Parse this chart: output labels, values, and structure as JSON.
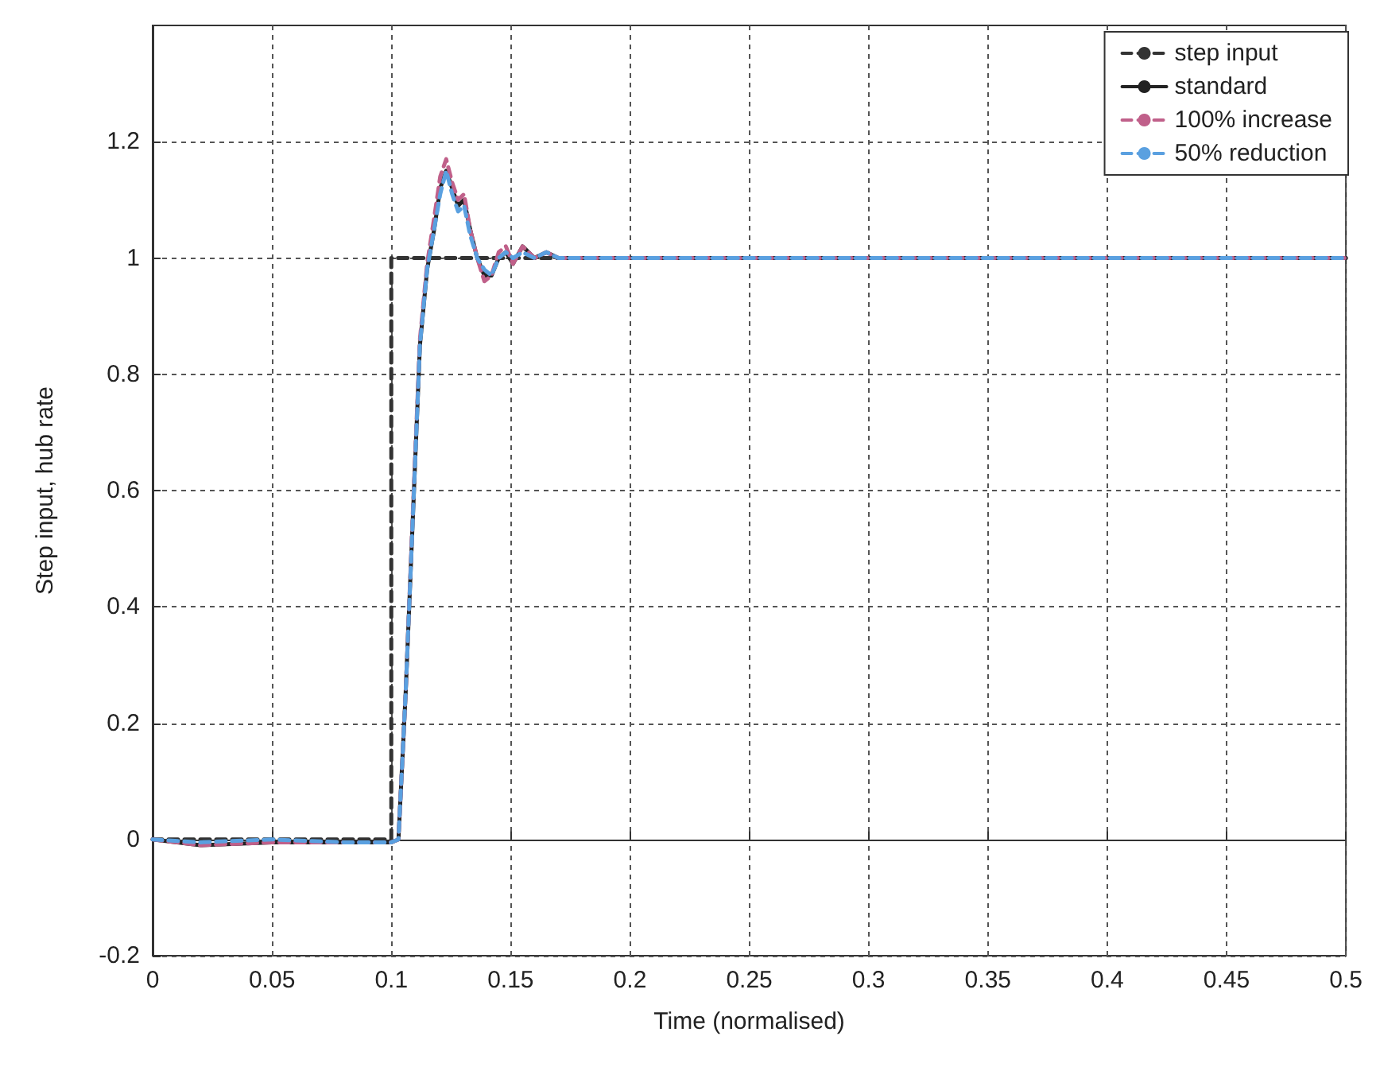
{
  "chart_data": {
    "type": "line",
    "xlabel": "Time (normalised)",
    "ylabel": "Step input, hub rate",
    "xlim": [
      0,
      0.5
    ],
    "xticks": [
      0,
      0.05,
      0.1,
      0.15,
      0.2,
      0.25,
      0.3,
      0.35,
      0.4,
      0.45,
      0.5
    ],
    "ylim": [
      -0.2,
      1.4
    ],
    "yticks": [
      -0.2,
      0,
      0.2,
      0.4,
      0.6,
      0.8,
      1,
      1.2
    ],
    "grid": true,
    "legend": "top right",
    "marker": "none",
    "series": [
      {
        "name": "step input",
        "color": "#333333",
        "line_style": "dashed",
        "x": [
          0,
          0.1,
          0.1,
          0.5
        ],
        "values": [
          0,
          0,
          1,
          1
        ]
      },
      {
        "name": "standard",
        "color": "#222222",
        "line_style": "solid",
        "x": [
          0,
          0.02,
          0.05,
          0.08,
          0.1,
          0.103,
          0.106,
          0.109,
          0.112,
          0.115,
          0.118,
          0.1205,
          0.123,
          0.1255,
          0.128,
          0.1305,
          0.133,
          0.136,
          0.139,
          0.142,
          0.145,
          0.148,
          0.151,
          0.155,
          0.16,
          0.165,
          0.17,
          0.18,
          0.2,
          0.25,
          0.3,
          0.4,
          0.5
        ],
        "values": [
          0,
          -0.01,
          -0.005,
          -0.005,
          -0.005,
          0,
          0.25,
          0.55,
          0.85,
          0.98,
          1.05,
          1.12,
          1.15,
          1.12,
          1.09,
          1.1,
          1.05,
          1,
          0.97,
          0.97,
          1,
          1.01,
          0.99,
          1.02,
          1,
          1.01,
          1,
          1,
          1,
          1,
          1,
          1,
          1
        ]
      },
      {
        "name": "100% increase",
        "color": "#c0608a",
        "line_style": "dashed",
        "x": [
          0,
          0.02,
          0.05,
          0.08,
          0.1,
          0.103,
          0.106,
          0.109,
          0.112,
          0.115,
          0.118,
          0.1205,
          0.123,
          0.1255,
          0.128,
          0.1305,
          0.133,
          0.136,
          0.139,
          0.142,
          0.145,
          0.148,
          0.151,
          0.155,
          0.16,
          0.165,
          0.17,
          0.18,
          0.2,
          0.25,
          0.3,
          0.4,
          0.5
        ],
        "values": [
          0,
          -0.01,
          -0.005,
          -0.005,
          -0.005,
          0,
          0.25,
          0.56,
          0.86,
          0.99,
          1.07,
          1.14,
          1.17,
          1.13,
          1.1,
          1.11,
          1.05,
          1,
          0.96,
          0.97,
          1.01,
          1.02,
          0.99,
          1.02,
          1,
          1.01,
          1,
          1,
          1,
          1,
          1,
          1,
          1
        ]
      },
      {
        "name": "50% reduction",
        "color": "#5aa0e0",
        "line_style": "dashed",
        "x": [
          0,
          0.02,
          0.05,
          0.08,
          0.1,
          0.103,
          0.106,
          0.109,
          0.112,
          0.115,
          0.118,
          0.1205,
          0.123,
          0.1255,
          0.128,
          0.1305,
          0.133,
          0.136,
          0.139,
          0.142,
          0.145,
          0.148,
          0.151,
          0.155,
          0.16,
          0.165,
          0.17,
          0.18,
          0.2,
          0.25,
          0.3,
          0.4,
          0.5
        ],
        "values": [
          0,
          -0.005,
          0,
          -0.005,
          -0.005,
          0,
          0.25,
          0.55,
          0.85,
          0.98,
          1.05,
          1.11,
          1.15,
          1.11,
          1.08,
          1.09,
          1.04,
          1,
          0.98,
          0.97,
          1,
          1.01,
          1,
          1.01,
          1,
          1.01,
          1,
          1,
          1,
          1,
          1,
          1,
          1
        ]
      }
    ]
  }
}
